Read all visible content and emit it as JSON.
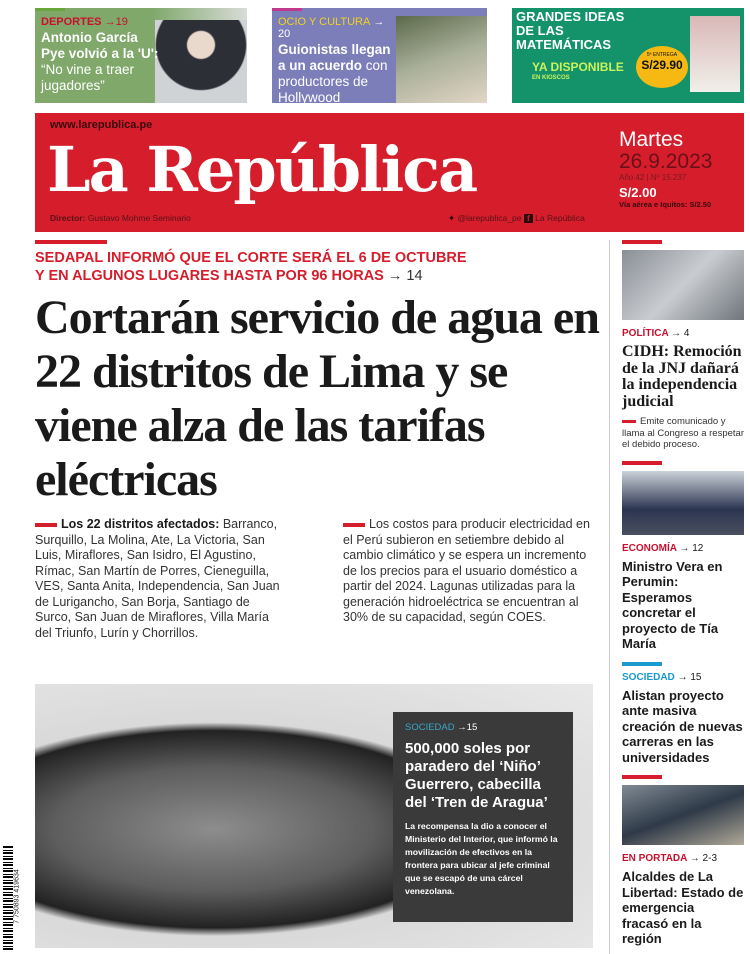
{
  "teasers": [
    {
      "section": "DEPORTES",
      "page": "→19",
      "headline_bold": "Antonio García Pye volvió a la 'U':",
      "headline_rest": " “No vine a traer jugadores”",
      "color": "#c8102e"
    },
    {
      "section": "OCIO Y CULTURA",
      "page": "→ 20",
      "headline_bold": "Guionistas llegan a un acuerdo",
      "headline_rest": " con productores de Hollywood",
      "color": "#f2d21b"
    },
    {
      "title": "GRANDES IDEAS DE LAS MATEMÁTICAS",
      "available": "YA DISPONIBLE",
      "where": "EN KIOSCOS",
      "price": "S/29.90",
      "delivery": "5ª ENTREGA"
    }
  ],
  "masthead": {
    "url": "www.larepublica.pe",
    "logo": "La República",
    "director_label": "Director:",
    "director": "Gustavo Mohme Seminario",
    "twitter": "@larepublica_pe",
    "facebook": "La República",
    "day": "Martes",
    "date": "26.9.2023",
    "issue": "Año 42 | Nº 15.237",
    "price": "S/2.00",
    "price_alt": "Vía aérea e Iquitos: S/2.50",
    "accent": "#d51d2c"
  },
  "main": {
    "kicker": "SEDAPAL INFORMÓ QUE EL CORTE SERÁ EL 6 DE OCTUBRE Y EN ALGUNOS LUGARES HASTA POR 96 HORAS",
    "kicker_page": "→ 14",
    "headline": "Cortarán servicio de agua en 22 distritos de Lima y se viene alza de las tarifas eléctricas",
    "col1_bold": "Los 22 distritos afectados:",
    "col1": " Barranco, Surquillo, La Molina, Ate, La Victoria, San Luis, Miraflores, San Isidro, El Agustino, Rímac, San Martín de Porres, Cieneguilla, VES, Santa Anita, Independencia, San Juan de Lurigancho, San Borja, Santiago de Surco, San Juan de Miraflores, Villa María del Triunfo, Lurín y Chorrillos.",
    "col2": "Los costos para producir electricidad en el Perú subieron en setiembre debido al cambio climático y se espera un incremento de los precios para el usuario doméstico a partir del 2024. Lagunas utilizadas para la generación hidroeléctrica se encuentran al 30% de su capacidad, según COES."
  },
  "photo_story": {
    "section": "SOCIEDAD",
    "page": "→15",
    "headline": "500,000 soles por paradero del ‘Niño’ Guerrero, cabecilla del ‘Tren de Aragua’",
    "body": "La recompensa la dio a conocer el Ministerio del Interior, que informó la movilización de efectivos en la frontera para ubicar al jefe criminal que se escapó de una cárcel venezolana."
  },
  "barcode": "7 750893 419634",
  "sidebar": [
    {
      "section": "POLÍTICA",
      "page": "→ 4",
      "headline": "CIDH: Remoción de la JNJ dañará la independencia judicial",
      "sub": "Emite comunicado y llama al Congreso a respetar el debido proceso.",
      "color": "#c8102e"
    },
    {
      "section": "ECONOMÍA",
      "page": "→ 12",
      "headline": "Ministro Vera en Perumin: Esperamos concretar el proyecto de Tía María",
      "color": "#c8102e"
    },
    {
      "section": "SOCIEDAD",
      "page": "→ 15",
      "headline": "Alistan proyecto ante masiva creación de nuevas carreras en las universidades",
      "color": "#1b9ad0"
    },
    {
      "section": "EN PORTADA",
      "page": "→ 2-3",
      "headline": "Alcaldes de La Libertad: Estado de emergencia fracasó en la región",
      "color": "#c8102e"
    }
  ]
}
